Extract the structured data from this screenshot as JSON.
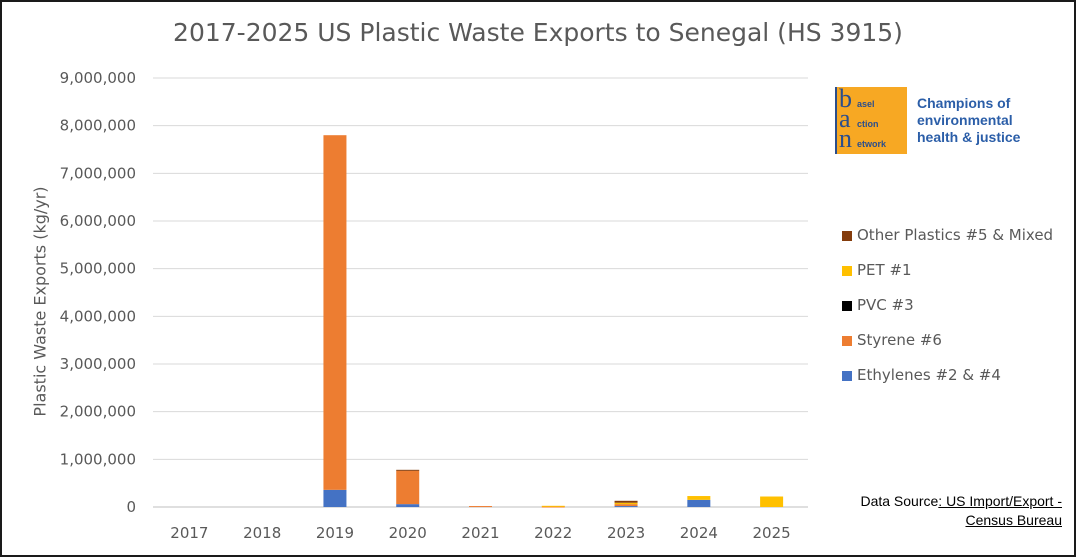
{
  "chart_data": {
    "type": "bar",
    "stacked": true,
    "title": "2017-2025 US Plastic Waste Exports to Senegal (HS 3915)",
    "ylabel": "Plastic Waste Exports (kg/yr)",
    "xlabel": "",
    "ylim": [
      0,
      9000000
    ],
    "yticks": [
      0,
      1000000,
      2000000,
      3000000,
      4000000,
      5000000,
      6000000,
      7000000,
      8000000,
      9000000
    ],
    "ytick_labels": [
      "0",
      "1,000,000",
      "2,000,000",
      "3,000,000",
      "4,000,000",
      "5,000,000",
      "6,000,000",
      "7,000,000",
      "8,000,000",
      "9,000,000"
    ],
    "grid": true,
    "legend_position": "right",
    "categories": [
      "2017",
      "2018",
      "2019",
      "2020",
      "2021",
      "2022",
      "2023",
      "2024",
      "2025"
    ],
    "series": [
      {
        "name": "Ethylenes #2 & #4",
        "color": "#4472c4",
        "values": [
          0,
          0,
          360000,
          60000,
          0,
          0,
          20000,
          150000,
          0
        ]
      },
      {
        "name": "Styrene #6",
        "color": "#ed7d31",
        "values": [
          0,
          0,
          7440000,
          700000,
          20000,
          10000,
          40000,
          0,
          0
        ]
      },
      {
        "name": "PVC #3",
        "color": "#000000",
        "values": [
          0,
          0,
          0,
          0,
          0,
          0,
          0,
          0,
          0
        ]
      },
      {
        "name": "PET #1",
        "color": "#ffc000",
        "values": [
          0,
          0,
          0,
          0,
          0,
          15000,
          30000,
          80000,
          220000
        ]
      },
      {
        "name": "Other Plastics #5 & Mixed",
        "color": "#843c0c",
        "values": [
          0,
          0,
          0,
          20000,
          0,
          0,
          40000,
          0,
          0
        ]
      }
    ]
  },
  "legend_order": [
    4,
    3,
    2,
    1,
    0
  ],
  "logo": {
    "letters": [
      "b",
      "a",
      "n"
    ],
    "words": [
      "asel",
      "ction",
      "etwork"
    ]
  },
  "tagline": [
    "Champions of",
    "environmental",
    "health & justice"
  ],
  "source": {
    "prefix": "Data Source",
    "link_line1": ": US Import/Export -",
    "link_line2": "Census Bureau"
  }
}
